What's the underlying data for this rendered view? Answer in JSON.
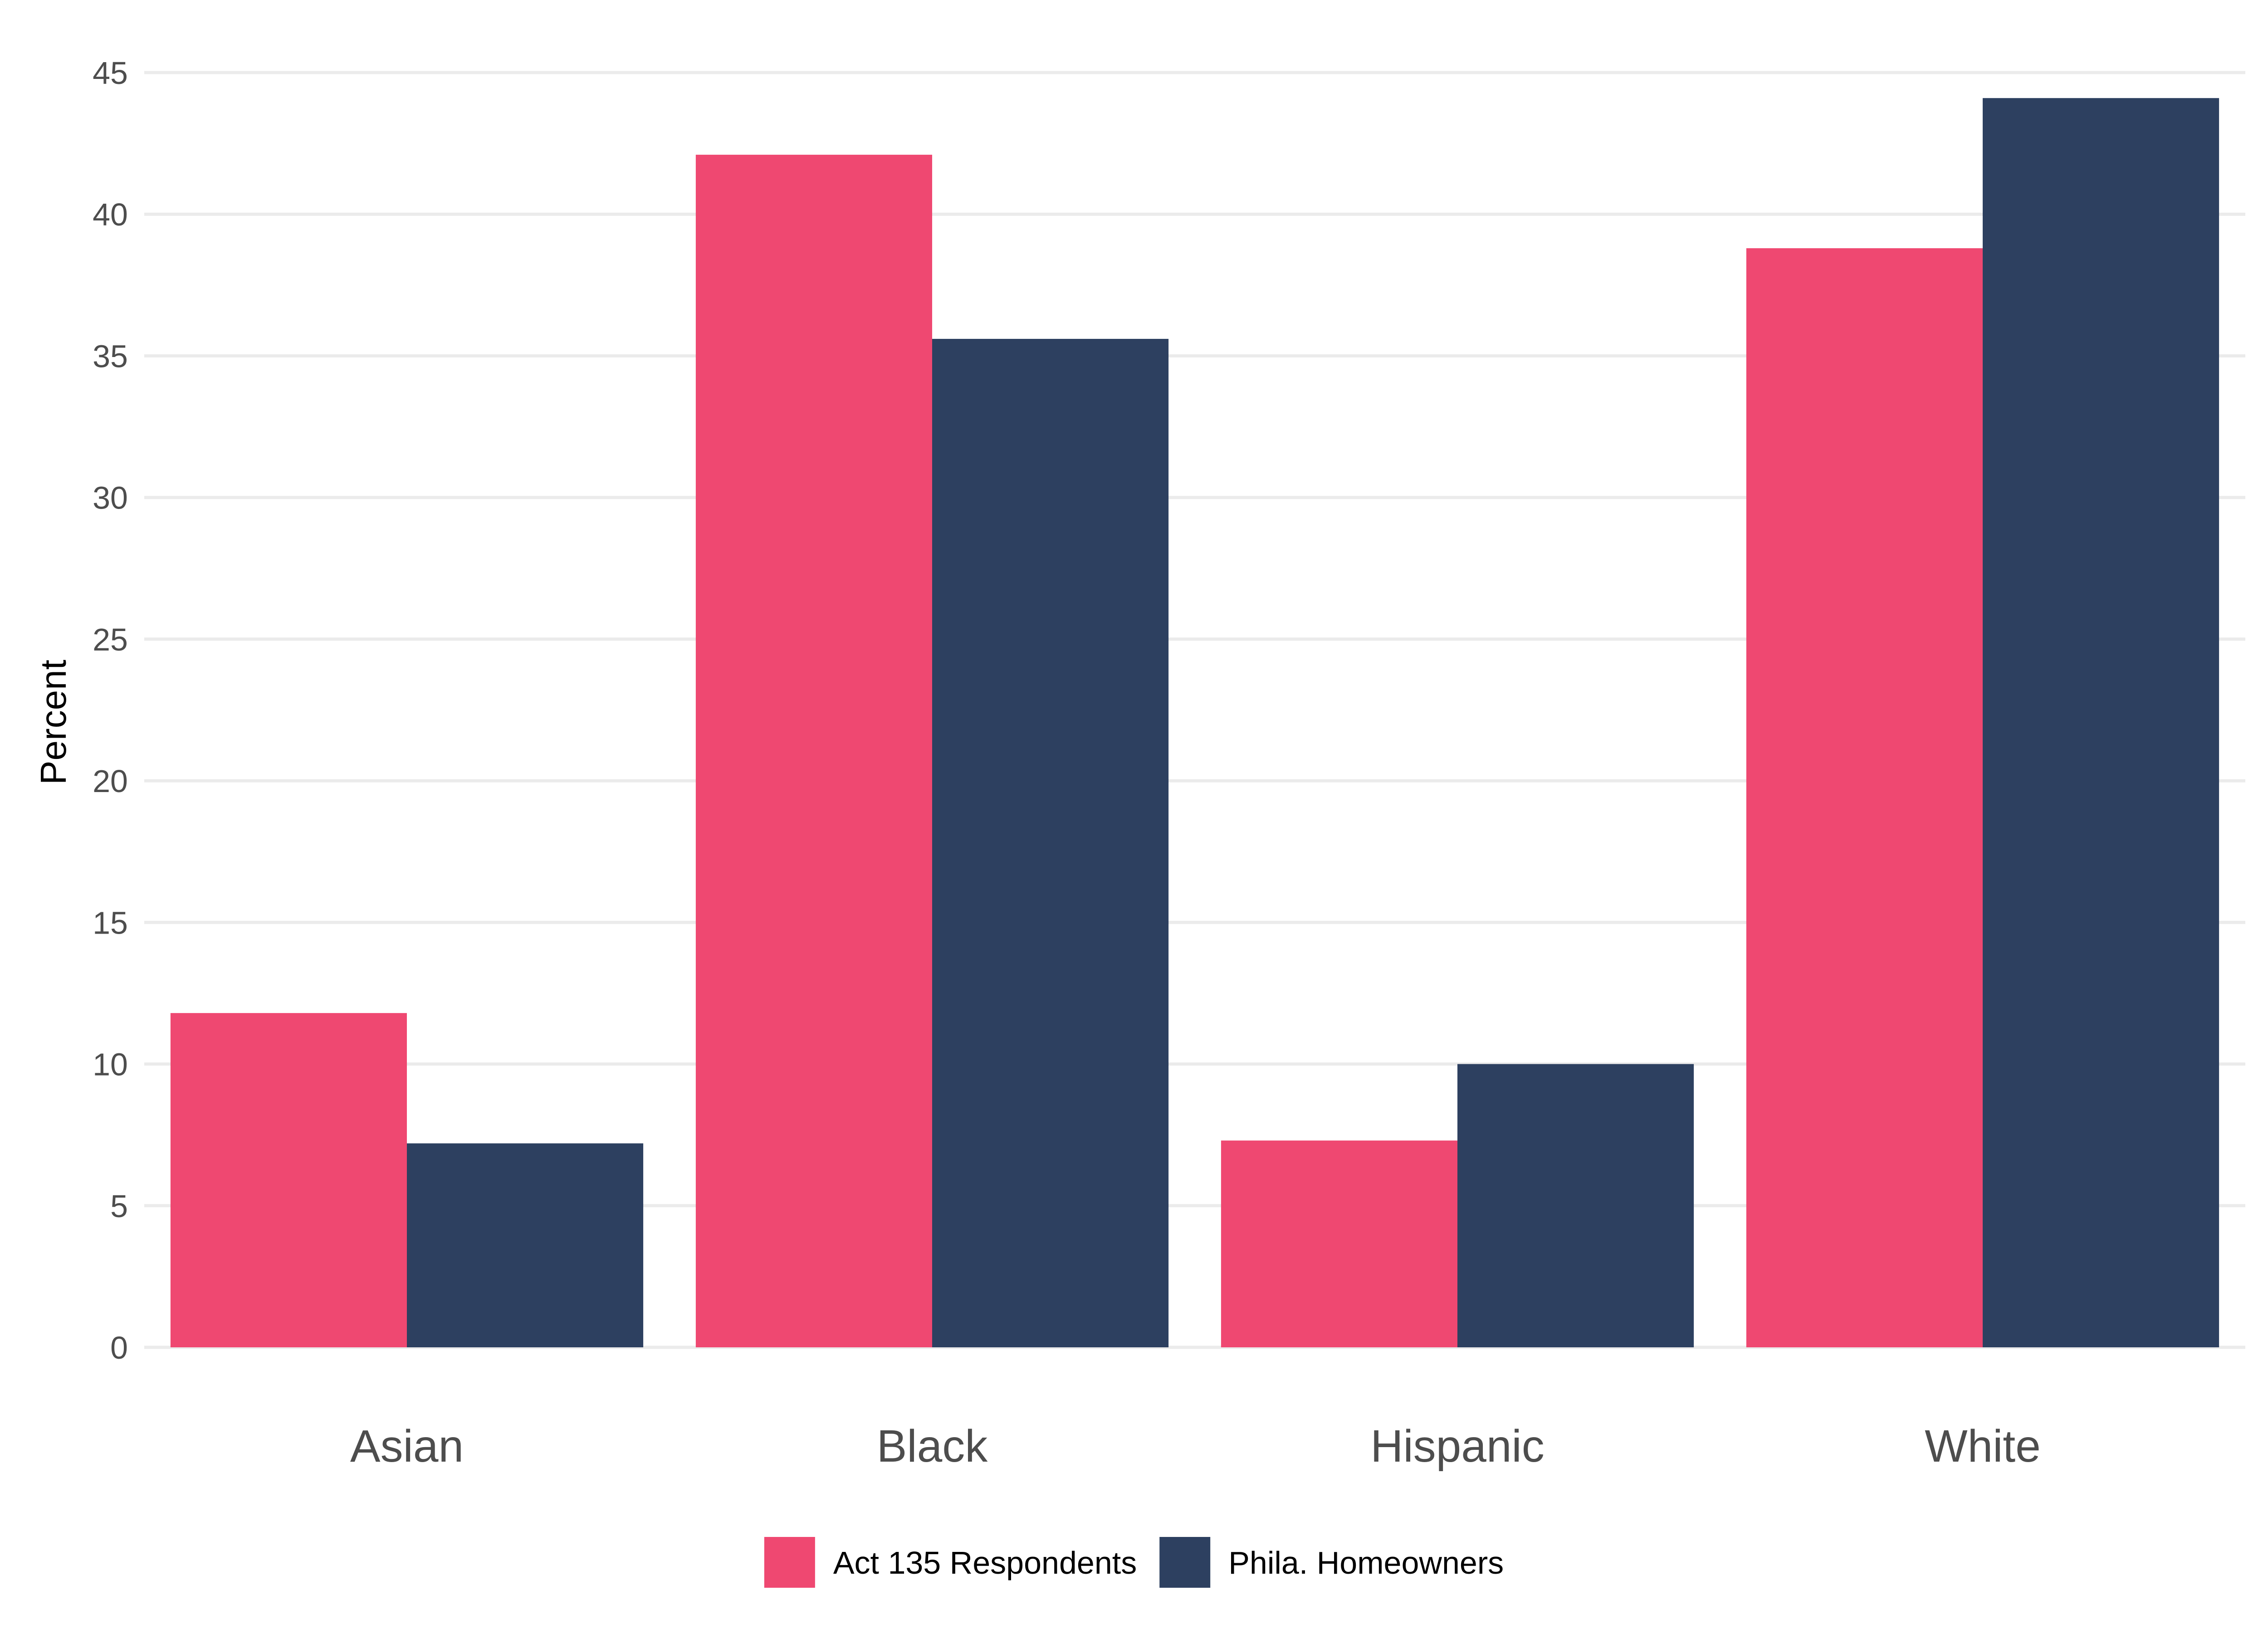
{
  "chart_data": {
    "type": "bar",
    "categories": [
      "Asian",
      "Black",
      "Hispanic",
      "White"
    ],
    "series": [
      {
        "name": "Act 135 Respondents",
        "color": "#ef4871",
        "values": [
          11.8,
          42.1,
          7.3,
          38.8
        ]
      },
      {
        "name": "Phila. Homeowners",
        "color": "#2d4060",
        "values": [
          7.2,
          35.6,
          10.0,
          44.1
        ]
      }
    ],
    "ylabel": "Percent",
    "xlabel": "",
    "ylim": [
      0,
      45
    ],
    "yticks": [
      0,
      5,
      10,
      15,
      20,
      25,
      30,
      35,
      40,
      45
    ],
    "grid": true,
    "legend_position": "bottom"
  }
}
